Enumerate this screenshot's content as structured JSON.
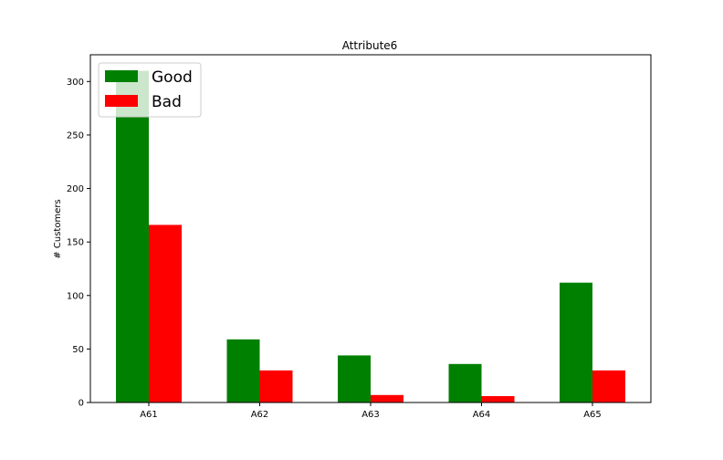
{
  "chart_data": {
    "type": "bar",
    "title": "Attribute6",
    "xlabel": "",
    "ylabel": "# Customers",
    "categories": [
      "A61",
      "A62",
      "A63",
      "A64",
      "A65"
    ],
    "series": [
      {
        "name": "Good",
        "color": "#008000",
        "values": [
          310,
          59,
          44,
          36,
          112
        ]
      },
      {
        "name": "Bad",
        "color": "#ff0000",
        "values": [
          166,
          30,
          7,
          6,
          30
        ]
      }
    ],
    "ylim": [
      0,
      325
    ],
    "yticks": [
      0,
      50,
      100,
      150,
      200,
      250,
      300
    ],
    "legend_position": "top-left",
    "grid": false
  }
}
